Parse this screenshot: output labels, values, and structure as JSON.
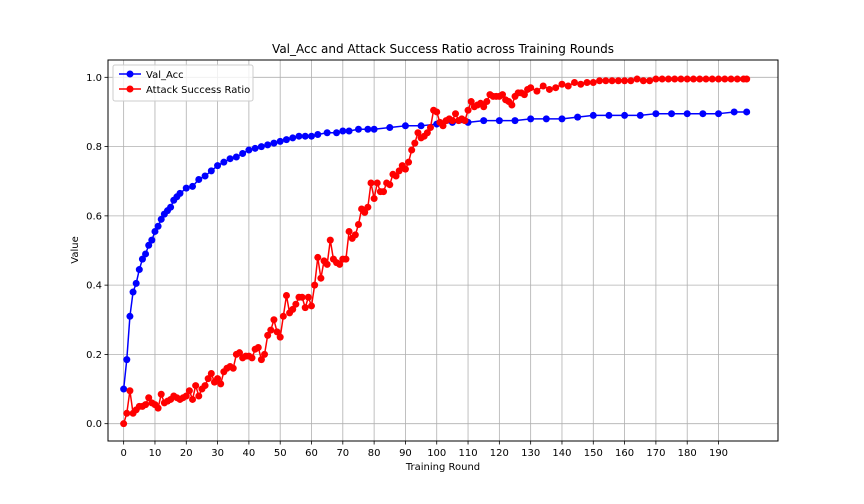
{
  "chart_data": {
    "type": "line",
    "title": "Val_Acc and Attack Success Ratio across Training Rounds",
    "xlabel": "Training Round",
    "ylabel": "Value",
    "xlim": [
      -5,
      209
    ],
    "ylim": [
      -0.05,
      1.05
    ],
    "xticks": [
      0,
      10,
      20,
      30,
      40,
      50,
      60,
      70,
      80,
      90,
      100,
      110,
      120,
      130,
      140,
      150,
      160,
      170,
      180,
      190
    ],
    "yticks": [
      0.0,
      0.2,
      0.4,
      0.6,
      0.8,
      1.0
    ],
    "grid": true,
    "legend_position": "top-left",
    "series": [
      {
        "name": "Val_Acc",
        "color": "#0000ff",
        "marker": "circle",
        "x": [
          0,
          1,
          2,
          3,
          4,
          5,
          6,
          7,
          8,
          9,
          10,
          11,
          12,
          13,
          14,
          15,
          16,
          17,
          18,
          20,
          22,
          24,
          26,
          28,
          30,
          32,
          34,
          36,
          38,
          40,
          42,
          44,
          46,
          48,
          50,
          52,
          54,
          56,
          58,
          60,
          62,
          65,
          68,
          70,
          72,
          75,
          78,
          80,
          85,
          90,
          95,
          100,
          105,
          110,
          115,
          120,
          125,
          130,
          135,
          140,
          145,
          150,
          155,
          160,
          165,
          170,
          175,
          180,
          185,
          190,
          195,
          199
        ],
        "values": [
          0.1,
          0.185,
          0.31,
          0.38,
          0.405,
          0.445,
          0.475,
          0.49,
          0.515,
          0.53,
          0.555,
          0.57,
          0.59,
          0.605,
          0.615,
          0.625,
          0.645,
          0.655,
          0.665,
          0.68,
          0.685,
          0.705,
          0.715,
          0.73,
          0.745,
          0.755,
          0.765,
          0.77,
          0.78,
          0.79,
          0.795,
          0.8,
          0.805,
          0.81,
          0.815,
          0.82,
          0.825,
          0.83,
          0.83,
          0.83,
          0.835,
          0.84,
          0.84,
          0.845,
          0.845,
          0.85,
          0.85,
          0.85,
          0.855,
          0.86,
          0.86,
          0.865,
          0.87,
          0.87,
          0.875,
          0.875,
          0.875,
          0.88,
          0.88,
          0.88,
          0.885,
          0.89,
          0.89,
          0.89,
          0.89,
          0.895,
          0.895,
          0.895,
          0.895,
          0.895,
          0.9,
          0.9
        ]
      },
      {
        "name": "Attack Success Ratio",
        "color": "#ff0000",
        "marker": "circle",
        "x": [
          0,
          1,
          2,
          3,
          4,
          5,
          6,
          7,
          8,
          9,
          10,
          11,
          12,
          13,
          14,
          15,
          16,
          17,
          18,
          19,
          20,
          21,
          22,
          23,
          24,
          25,
          26,
          27,
          28,
          29,
          30,
          31,
          32,
          33,
          34,
          35,
          36,
          37,
          38,
          39,
          40,
          41,
          42,
          43,
          44,
          45,
          46,
          47,
          48,
          49,
          50,
          51,
          52,
          53,
          54,
          55,
          56,
          57,
          58,
          59,
          60,
          61,
          62,
          63,
          64,
          65,
          66,
          67,
          68,
          69,
          70,
          71,
          72,
          73,
          74,
          75,
          76,
          77,
          78,
          79,
          80,
          81,
          82,
          83,
          84,
          85,
          86,
          87,
          88,
          89,
          90,
          91,
          92,
          93,
          94,
          95,
          96,
          97,
          98,
          99,
          100,
          101,
          102,
          103,
          104,
          105,
          106,
          107,
          108,
          109,
          110,
          111,
          112,
          113,
          114,
          115,
          116,
          117,
          118,
          119,
          120,
          121,
          122,
          123,
          124,
          125,
          126,
          127,
          128,
          129,
          130,
          132,
          134,
          136,
          138,
          140,
          142,
          144,
          146,
          148,
          150,
          152,
          154,
          156,
          158,
          160,
          162,
          164,
          166,
          168,
          170,
          172,
          174,
          176,
          178,
          180,
          182,
          184,
          186,
          188,
          190,
          192,
          194,
          196,
          198,
          199
        ],
        "values": [
          0.0,
          0.03,
          0.095,
          0.03,
          0.04,
          0.05,
          0.05,
          0.055,
          0.075,
          0.06,
          0.055,
          0.045,
          0.085,
          0.06,
          0.065,
          0.07,
          0.08,
          0.075,
          0.07,
          0.075,
          0.08,
          0.095,
          0.07,
          0.11,
          0.08,
          0.1,
          0.11,
          0.13,
          0.145,
          0.12,
          0.13,
          0.115,
          0.15,
          0.16,
          0.165,
          0.16,
          0.2,
          0.205,
          0.19,
          0.195,
          0.195,
          0.19,
          0.215,
          0.22,
          0.185,
          0.2,
          0.255,
          0.27,
          0.3,
          0.265,
          0.25,
          0.31,
          0.37,
          0.32,
          0.33,
          0.345,
          0.365,
          0.365,
          0.335,
          0.365,
          0.34,
          0.4,
          0.48,
          0.42,
          0.47,
          0.46,
          0.53,
          0.475,
          0.465,
          0.46,
          0.475,
          0.475,
          0.555,
          0.535,
          0.545,
          0.575,
          0.62,
          0.61,
          0.625,
          0.695,
          0.65,
          0.695,
          0.67,
          0.67,
          0.695,
          0.69,
          0.72,
          0.715,
          0.73,
          0.745,
          0.735,
          0.755,
          0.79,
          0.81,
          0.84,
          0.825,
          0.83,
          0.84,
          0.855,
          0.905,
          0.9,
          0.87,
          0.86,
          0.875,
          0.88,
          0.875,
          0.895,
          0.875,
          0.88,
          0.875,
          0.905,
          0.93,
          0.915,
          0.92,
          0.925,
          0.915,
          0.93,
          0.95,
          0.945,
          0.945,
          0.945,
          0.95,
          0.935,
          0.93,
          0.92,
          0.945,
          0.955,
          0.955,
          0.95,
          0.965,
          0.97,
          0.96,
          0.975,
          0.965,
          0.97,
          0.98,
          0.975,
          0.985,
          0.98,
          0.985,
          0.985,
          0.99,
          0.99,
          0.99,
          0.99,
          0.99,
          0.99,
          0.995,
          0.99,
          0.99,
          0.995,
          0.995,
          0.995,
          0.995,
          0.995,
          0.995,
          0.995,
          0.995,
          0.995,
          0.995,
          0.995,
          0.995,
          0.995,
          0.995,
          0.995,
          0.995
        ]
      }
    ]
  }
}
